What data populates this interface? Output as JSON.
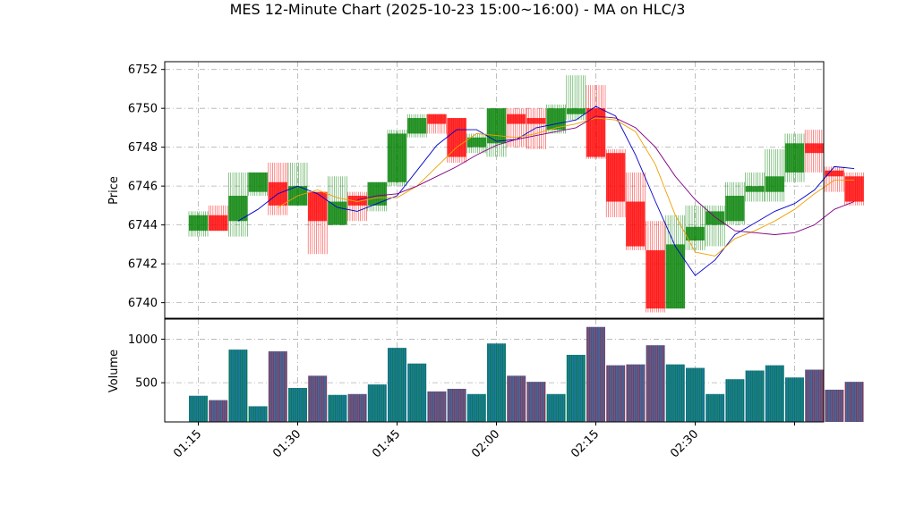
{
  "chart_data": {
    "type": "candlestick",
    "title": "MES 12-Minute Chart (2025-10-23 15:00~16:00) - MA on HLC/3",
    "grid": true,
    "price_panel": {
      "ylabel": "Price",
      "ylim": [
        6739.2,
        6752.4
      ],
      "yticks": [
        6740,
        6742,
        6744,
        6746,
        6748,
        6750,
        6752
      ],
      "candles": [
        {
          "t": 0,
          "o": 6743.7,
          "c": 6744.5,
          "h": 6744.7,
          "l": 6743.4
        },
        {
          "t": 1,
          "o": 6744.5,
          "c": 6743.7,
          "h": 6745.0,
          "l": 6743.7
        },
        {
          "t": 2,
          "o": 6744.2,
          "c": 6745.5,
          "h": 6746.7,
          "l": 6743.4
        },
        {
          "t": 3,
          "o": 6745.7,
          "c": 6746.7,
          "h": 6746.7,
          "l": 6745.5
        },
        {
          "t": 4,
          "o": 6746.2,
          "c": 6745.0,
          "h": 6747.2,
          "l": 6744.5
        },
        {
          "t": 5,
          "o": 6745.0,
          "c": 6746.0,
          "h": 6747.2,
          "l": 6745.0
        },
        {
          "t": 6,
          "o": 6745.7,
          "c": 6744.2,
          "h": 6745.7,
          "l": 6742.5
        },
        {
          "t": 7,
          "o": 6744.0,
          "c": 6745.2,
          "h": 6746.5,
          "l": 6744.0
        },
        {
          "t": 8,
          "o": 6745.5,
          "c": 6745.0,
          "h": 6745.7,
          "l": 6744.2
        },
        {
          "t": 9,
          "o": 6745.0,
          "c": 6746.2,
          "h": 6746.2,
          "l": 6744.7
        },
        {
          "t": 10,
          "o": 6746.2,
          "c": 6748.7,
          "h": 6748.9,
          "l": 6746.0
        },
        {
          "t": 11,
          "o": 6748.7,
          "c": 6749.5,
          "h": 6749.7,
          "l": 6748.5
        },
        {
          "t": 12,
          "o": 6749.7,
          "c": 6749.2,
          "h": 6749.7,
          "l": 6748.7
        },
        {
          "t": 13,
          "o": 6749.5,
          "c": 6747.5,
          "h": 6749.5,
          "l": 6747.2
        },
        {
          "t": 14,
          "o": 6748.0,
          "c": 6748.5,
          "h": 6748.7,
          "l": 6747.7
        },
        {
          "t": 15,
          "o": 6748.2,
          "c": 6750.0,
          "h": 6750.0,
          "l": 6747.5
        },
        {
          "t": 16,
          "o": 6749.7,
          "c": 6749.2,
          "h": 6750.0,
          "l": 6748.0
        },
        {
          "t": 17,
          "o": 6749.5,
          "c": 6749.2,
          "h": 6750.0,
          "l": 6747.9
        },
        {
          "t": 18,
          "o": 6748.9,
          "c": 6750.0,
          "h": 6750.2,
          "l": 6748.7
        },
        {
          "t": 19,
          "o": 6749.7,
          "c": 6750.0,
          "h": 6751.7,
          "l": 6749.4
        },
        {
          "t": 20,
          "o": 6750.0,
          "c": 6747.5,
          "h": 6751.2,
          "l": 6747.4
        },
        {
          "t": 21,
          "o": 6747.7,
          "c": 6745.2,
          "h": 6747.9,
          "l": 6744.4
        },
        {
          "t": 22,
          "o": 6745.2,
          "c": 6742.9,
          "h": 6746.7,
          "l": 6742.7
        },
        {
          "t": 23,
          "o": 6742.7,
          "c": 6739.7,
          "h": 6744.2,
          "l": 6739.5
        },
        {
          "t": 24,
          "o": 6739.7,
          "c": 6743.0,
          "h": 6744.5,
          "l": 6739.7
        },
        {
          "t": 25,
          "o": 6743.2,
          "c": 6743.9,
          "h": 6745.0,
          "l": 6742.7
        },
        {
          "t": 26,
          "o": 6744.0,
          "c": 6744.7,
          "h": 6745.0,
          "l": 6742.9
        },
        {
          "t": 27,
          "o": 6744.2,
          "c": 6745.5,
          "h": 6746.2,
          "l": 6744.0
        },
        {
          "t": 28,
          "o": 6745.7,
          "c": 6746.0,
          "h": 6746.7,
          "l": 6745.2
        },
        {
          "t": 29,
          "o": 6745.7,
          "c": 6746.5,
          "h": 6747.9,
          "l": 6745.2
        },
        {
          "t": 30,
          "o": 6746.7,
          "c": 6748.2,
          "h": 6748.7,
          "l": 6746.2
        },
        {
          "t": 31,
          "o": 6748.2,
          "c": 6747.7,
          "h": 6748.9,
          "l": 6746.7
        },
        {
          "t": 32,
          "o": 6746.8,
          "c": 6746.5,
          "h": 6747.0,
          "l": 6745.7
        },
        {
          "t": 33,
          "o": 6746.5,
          "c": 6745.2,
          "h": 6746.7,
          "l": 6745.0
        }
      ],
      "ma_lines": [
        {
          "color": "#0000cc",
          "values": [
            null,
            null,
            6744.2,
            6744.8,
            6745.6,
            6746.0,
            6745.6,
            6744.9,
            6744.7,
            6745.1,
            6745.5,
            6746.8,
            6748.1,
            6748.9,
            6748.9,
            6748.3,
            6748.4,
            6749.0,
            6749.2,
            6749.4,
            6750.1,
            6749.6,
            6747.6,
            6745.2,
            6742.9,
            6741.4,
            6742.2,
            6743.5,
            6744.1,
            6744.7,
            6745.1,
            6745.8,
            6747.0,
            6746.9
          ]
        },
        {
          "color": "#f0a000",
          "values": [
            null,
            null,
            null,
            null,
            6744.9,
            6745.5,
            6745.8,
            6745.4,
            6745.2,
            6745.4,
            6745.4,
            6746.0,
            6747.0,
            6748.0,
            6748.7,
            6748.6,
            6748.5,
            6748.7,
            6749.0,
            6749.2,
            6749.5,
            6749.4,
            6748.8,
            6747.1,
            6744.5,
            6742.6,
            6742.4,
            6743.3,
            6743.7,
            6744.2,
            6744.8,
            6745.6,
            6746.3,
            6746.3
          ]
        },
        {
          "color": "#800080",
          "values": [
            null,
            null,
            null,
            null,
            null,
            null,
            null,
            null,
            6745.3,
            6745.5,
            6745.6,
            6746.0,
            6746.5,
            6747.0,
            6747.6,
            6748.1,
            6748.4,
            6748.6,
            6748.8,
            6749.0,
            6749.6,
            6749.5,
            6749.0,
            6748.0,
            6746.5,
            6745.3,
            6744.4,
            6743.7,
            6743.6,
            6743.5,
            6743.6,
            6744.0,
            6744.8,
            6745.2
          ]
        }
      ]
    },
    "volume_panel": {
      "ylabel": "Volume",
      "ylim": [
        50,
        1230
      ],
      "yticks": [
        500,
        1000
      ],
      "values": [
        350,
        300,
        880,
        230,
        860,
        440,
        580,
        360,
        370,
        480,
        900,
        720,
        400,
        430,
        370,
        950,
        580,
        510,
        370,
        820,
        1140,
        700,
        710,
        930,
        710,
        670,
        370,
        540,
        640,
        700,
        560,
        650,
        420,
        510
      ]
    },
    "x_axis": {
      "tick_positions": [
        0,
        5,
        10,
        15,
        20,
        25,
        30
      ],
      "tick_labels": [
        "01:15",
        "01:30",
        "01:45",
        "02:00",
        "02:15",
        "02:30",
        ""
      ]
    },
    "colors": {
      "up": "#008000",
      "down": "#ff0000",
      "volume_face": "#1f77b4",
      "grid": "#b0b0b0"
    }
  }
}
